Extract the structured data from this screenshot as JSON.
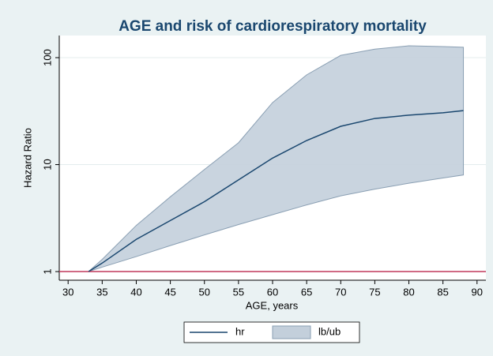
{
  "chart_data": {
    "type": "line",
    "title": "AGE and risk of cardiorespiratory mortality",
    "xlabel": "AGE, years",
    "ylabel": "Hazard Ratio",
    "x": [
      33,
      35,
      40,
      45,
      50,
      55,
      60,
      65,
      70,
      75,
      80,
      85,
      88
    ],
    "series": [
      {
        "name": "hr",
        "color": "#1a476f",
        "values": [
          1,
          1.2,
          2.0,
          3.0,
          4.5,
          7.2,
          11.5,
          16.8,
          22.8,
          27,
          29,
          30.5,
          32
        ]
      },
      {
        "name": "lb/ub",
        "color": "#c3cfdb",
        "lower": [
          1,
          1.1,
          1.38,
          1.75,
          2.2,
          2.75,
          3.4,
          4.2,
          5.1,
          5.9,
          6.7,
          7.5,
          8
        ],
        "upper": [
          1,
          1.3,
          2.7,
          5,
          9,
          16,
          38,
          69,
          105,
          120,
          129,
          127,
          125
        ]
      }
    ],
    "reference_line": 1,
    "reference_color": "#c1395b",
    "xlim": [
      28.7,
      91.3
    ],
    "xticks": [
      30,
      35,
      40,
      45,
      50,
      55,
      60,
      65,
      70,
      75,
      80,
      85,
      90
    ],
    "ylim": [
      0.83,
      161
    ],
    "yticks": [
      1,
      10,
      100
    ],
    "log_y": true,
    "grid": true,
    "legend": "bottom"
  }
}
